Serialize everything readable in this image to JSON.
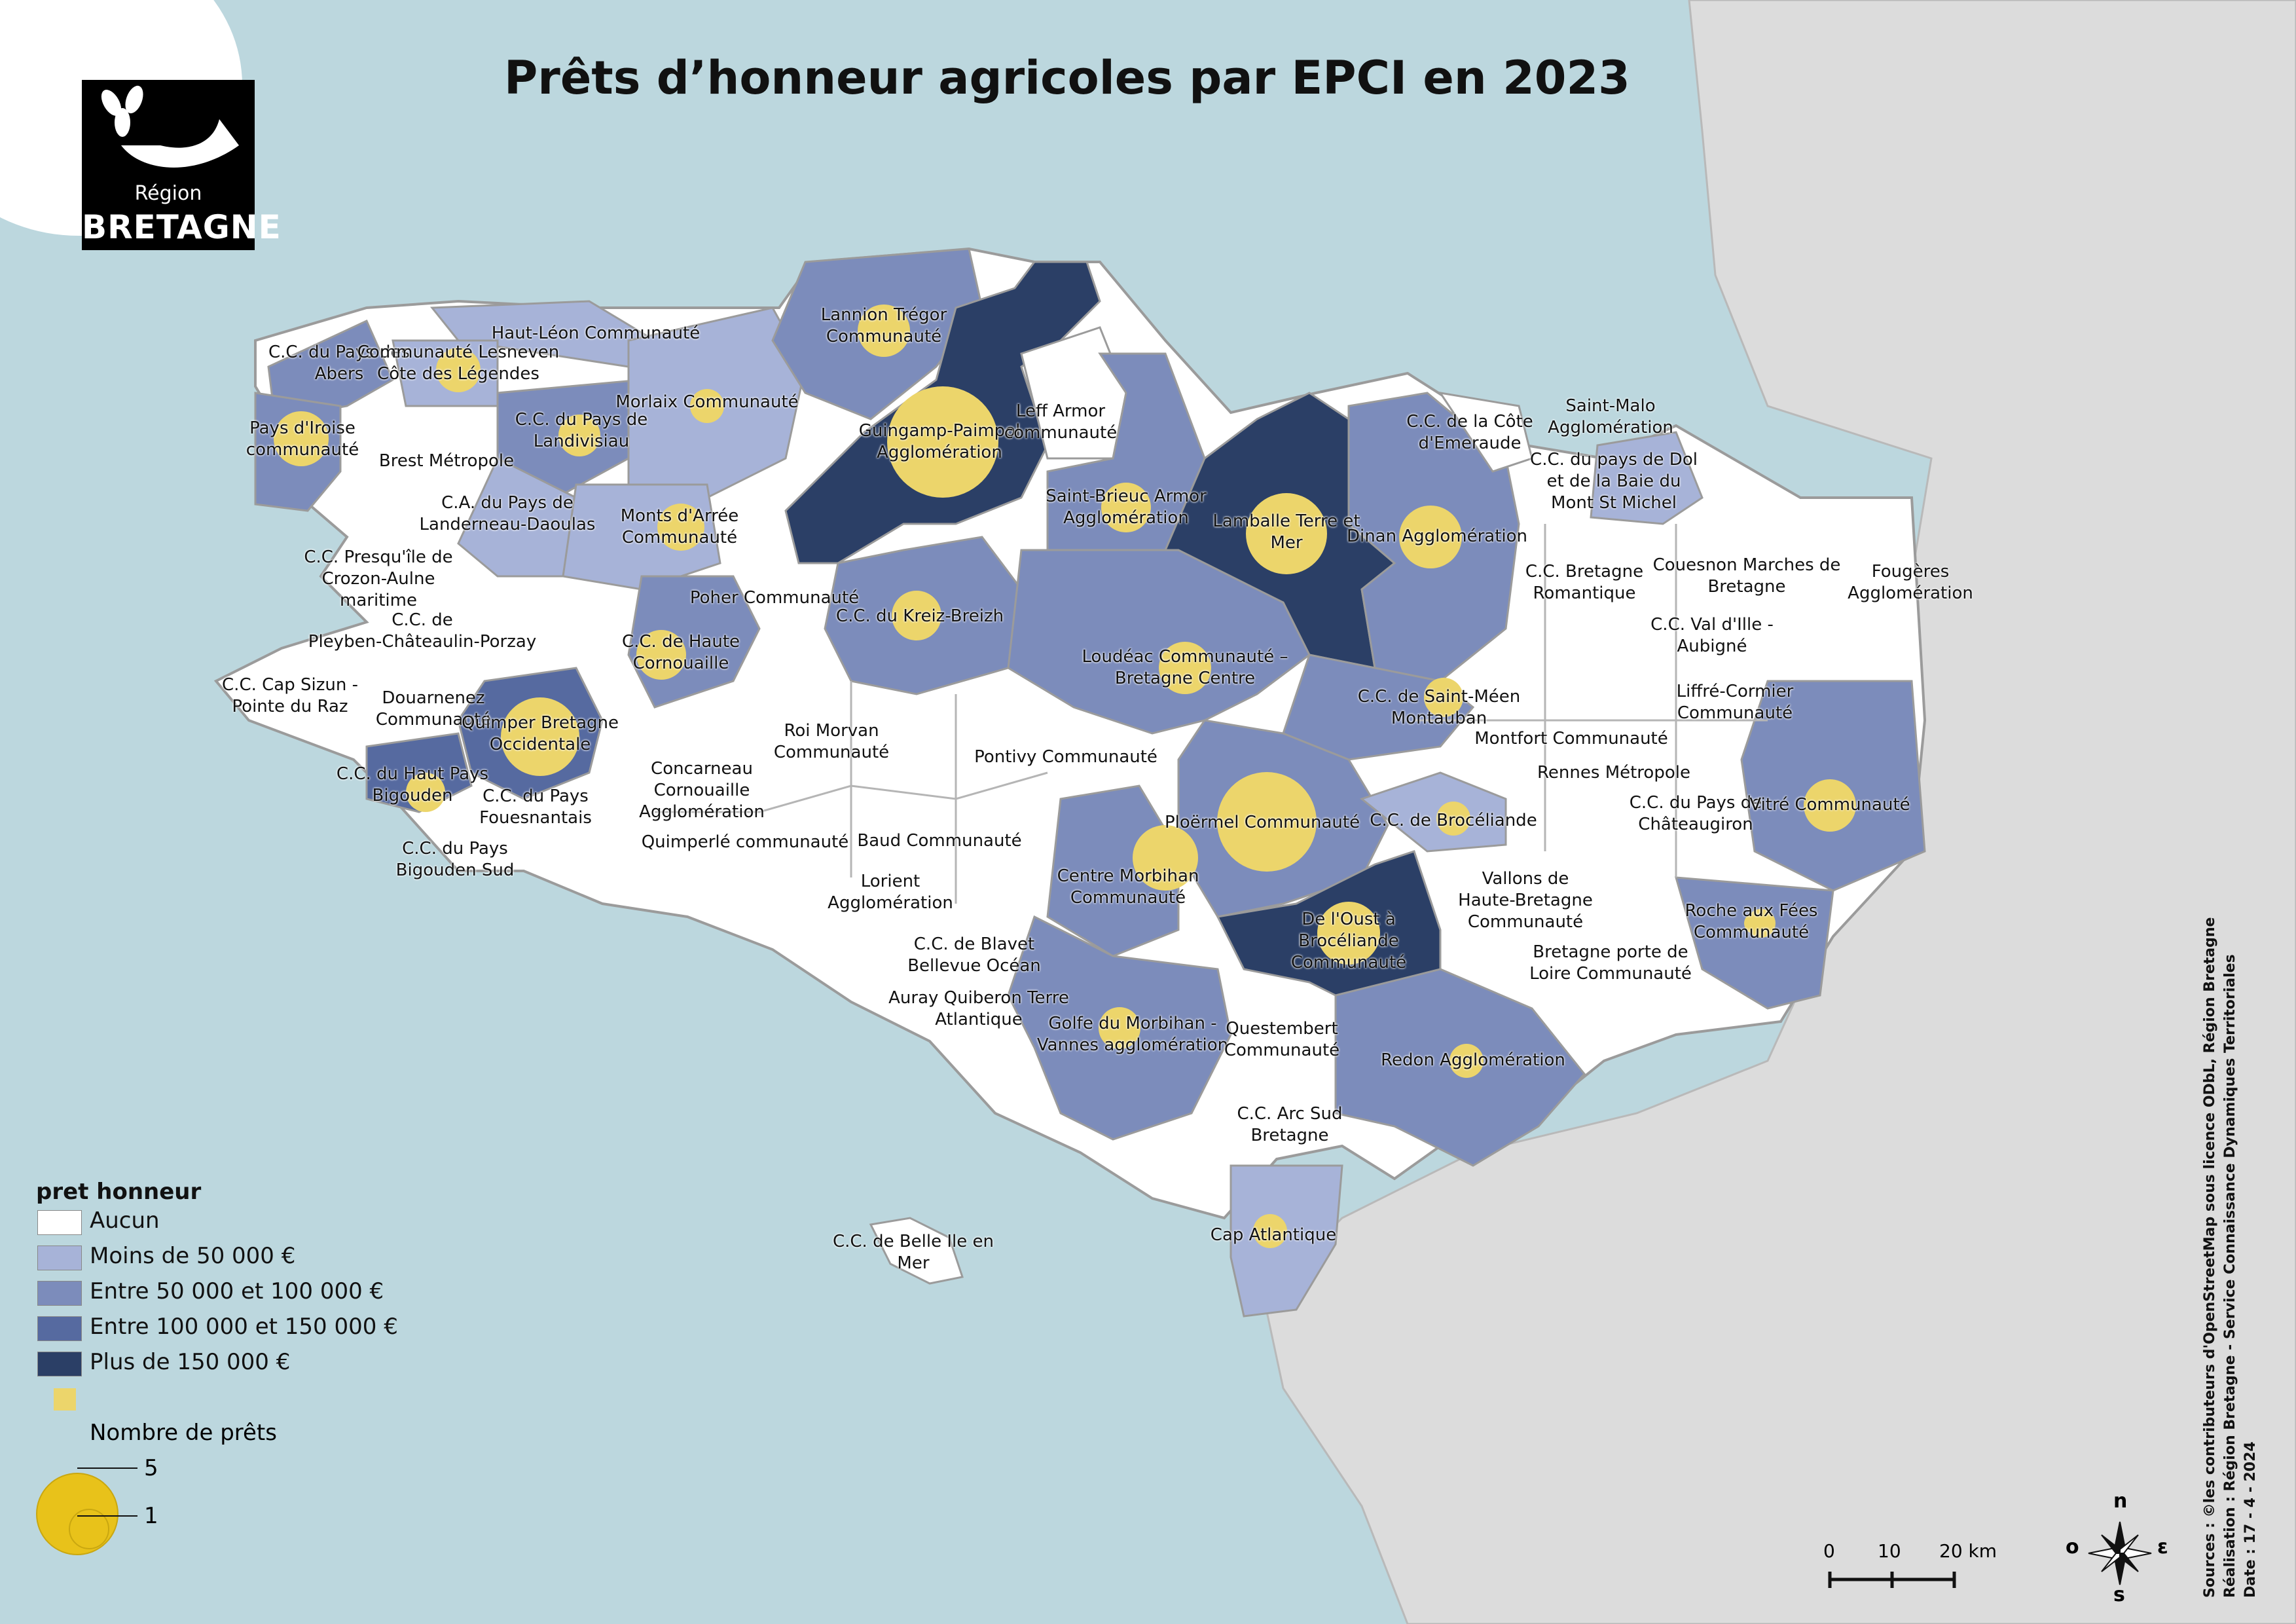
{
  "title": "Prêts d’honneur agricoles par EPCI en 2023",
  "logo": {
    "line1": "Région",
    "line2": "BRETAGNE"
  },
  "colors": {
    "sea": "#bcd7de",
    "land_outside": "#dcdcdc",
    "aucun": "#ffffff",
    "moins_50k": "#a7b3d8",
    "50k_100k": "#7c8cbb",
    "100k_150k": "#566aa0",
    "plus_150k": "#2b3f66",
    "circle": "#ecd56b"
  },
  "legend": {
    "title": "pret honneur",
    "classes": [
      {
        "label": "Aucun",
        "color": "#ffffff"
      },
      {
        "label": "Moins de 50 000 €",
        "color": "#a7b3d8"
      },
      {
        "label": "Entre 50 000 et 100 000 €",
        "color": "#7c8cbb"
      },
      {
        "label": "Entre 100 000 et 150 000 €",
        "color": "#566aa0"
      },
      {
        "label": "Plus de 150 000 €",
        "color": "#2b3f66"
      }
    ],
    "circle_title": "Nombre de prêts",
    "circle_values": [
      "5",
      "1"
    ]
  },
  "epci_labels": [
    "Lannion Trégor\nCommunauté",
    "Haut-Léon Communauté",
    "C.C. du Pays des\nAbers",
    "Communauté Lesneven\nCôte des Légendes",
    "Morlaix Communauté",
    "Guingamp-Paimpol\nAgglomération",
    "Leff Armor\ncommunauté",
    "Pays d'Iroise\ncommunauté",
    "C.C. du Pays de\nLandivisiau",
    "Brest Métropole",
    "C.A. du Pays de\nLanderneau-Daoulas",
    "Saint-Malo\nAgglomération",
    "C.C. de la Côte\nd'Emeraude",
    "C.C. du pays de Dol\net de la Baie du\nMont St Michel",
    "Saint-Brieuc Armor\nAgglomération",
    "Lamballe Terre et\nMer",
    "Dinan Agglomération",
    "Monts d'Arrée\nCommunauté",
    "C.C. Presqu'île de\nCrozon-Aulne\nmaritime",
    "C.C. Bretagne\nRomantique",
    "Couesnon Marches de\nBretagne",
    "Fougères\nAgglomération",
    "Poher Communauté",
    "C.C. du Kreiz-Breizh",
    "C.C. de\nPleyben-Châteaulin-Porzay",
    "C.C. de Haute\nCornouaille",
    "Loudéac Communauté –\nBretagne Centre",
    "C.C. Val d'Ille -\nAubigné",
    "C.C. Cap Sizun -\nPointe du Raz",
    "Douarnenez\nCommunauté",
    "Quimper Bretagne\nOccidentale",
    "C.C. de Saint-Méen\nMontauban",
    "Liffré-Cormier\nCommunauté",
    "Roi Morvan\nCommunauté",
    "Montfort Communauté",
    "C.C. du Haut Pays\nBigouden",
    "C.C. du Pays\nFouesnantais",
    "Concarneau\nCornouaille\nAgglomération",
    "Pontivy Communauté",
    "Rennes Métropole",
    "Ploërmel Communauté",
    "C.C. de Brocéliande",
    "C.C. du Pays de\nChâteaugiron",
    "Vitré Communauté",
    "C.C. du Pays\nBigouden Sud",
    "Quimperlé communauté",
    "Baud Communauté",
    "Lorient\nAgglomération",
    "Centre Morbihan\nCommunauté",
    "Vallons de\nHaute-Bretagne\nCommunauté",
    "Roche aux Fées\nCommunauté",
    "De l'Oust à\nBrocéliande\nCommunauté",
    "C.C. de Blavet\nBellevue Océan",
    "Bretagne porte de\nLoire Communauté",
    "Auray Quiberon Terre\nAtlantique",
    "Golfe du Morbihan -\nVannes agglomération",
    "Questembert\nCommunauté",
    "Redon Agglomération",
    "C.C. Arc Sud\nBretagne",
    "C.C. de Belle Ile en\nMer",
    "Cap Atlantique"
  ],
  "scale_bar": {
    "labels": [
      "0",
      "10",
      "20 km"
    ]
  },
  "compass": {
    "n": "n",
    "e": "ε",
    "s": "s",
    "o": "o"
  },
  "credits": [
    "Sources : ©les contributeurs d'OpenStreetMap sous licence ODbL, Région Bretagne",
    "Réalisation : Région Bretagne - Service Connaissance Dynamiques Territoriales",
    "Date : 17 - 4 - 2024"
  ]
}
